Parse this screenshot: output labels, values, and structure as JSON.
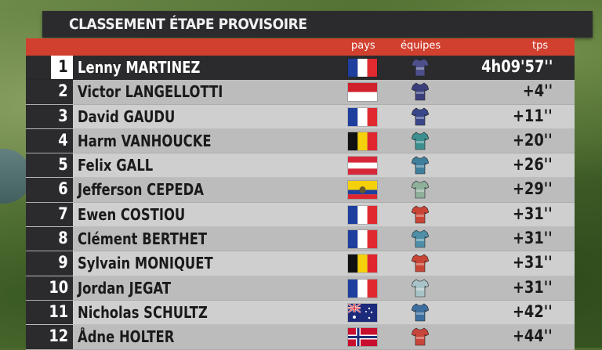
{
  "title": "CLASSEMENT ÉTAPE PROVISOIRE",
  "headers": {
    "pays": "pays",
    "equipes": "équipes",
    "tps": "tps"
  },
  "colors": {
    "header_red": "#d1402f",
    "dark": "#2b2b2e"
  },
  "riders": [
    {
      "rank": "1",
      "name": "Lenny MARTINEZ",
      "time": "4h09'57''",
      "flag": "france",
      "jersey": "#4c4f8a"
    },
    {
      "rank": "2",
      "name": "Victor LANGELLOTTI",
      "time": "+4''",
      "flag": "monaco",
      "jersey": "#3a3f7c"
    },
    {
      "rank": "3",
      "name": "David GAUDU",
      "time": "+11''",
      "flag": "france",
      "jersey": "#39478a"
    },
    {
      "rank": "4",
      "name": "Harm VANHOUCKE",
      "time": "+20''",
      "flag": "belgium",
      "jersey": "#3d8f8f"
    },
    {
      "rank": "5",
      "name": "Felix GALL",
      "time": "+26''",
      "flag": "austria",
      "jersey": "#3f7f9c"
    },
    {
      "rank": "6",
      "name": "Jefferson CEPEDA",
      "time": "+29''",
      "flag": "ecuador",
      "jersey": "#8fb09a"
    },
    {
      "rank": "7",
      "name": "Ewen COSTIOU",
      "time": "+31''",
      "flag": "france",
      "jersey": "#c84535"
    },
    {
      "rank": "8",
      "name": "Clément BERTHET",
      "time": "+31''",
      "flag": "france",
      "jersey": "#4f8fa8"
    },
    {
      "rank": "9",
      "name": "Sylvain MONIQUET",
      "time": "+31''",
      "flag": "belgium",
      "jersey": "#c84535"
    },
    {
      "rank": "10",
      "name": "Jordan JEGAT",
      "time": "+31''",
      "flag": "france",
      "jersey": "#a9c4c8"
    },
    {
      "rank": "11",
      "name": "Nicholas SCHULTZ",
      "time": "+42''",
      "flag": "australia",
      "jersey": "#3c6fa0"
    },
    {
      "rank": "12",
      "name": "Ådne HOLTER",
      "time": "+44''",
      "flag": "norway",
      "jersey": "#c8453a"
    }
  ]
}
